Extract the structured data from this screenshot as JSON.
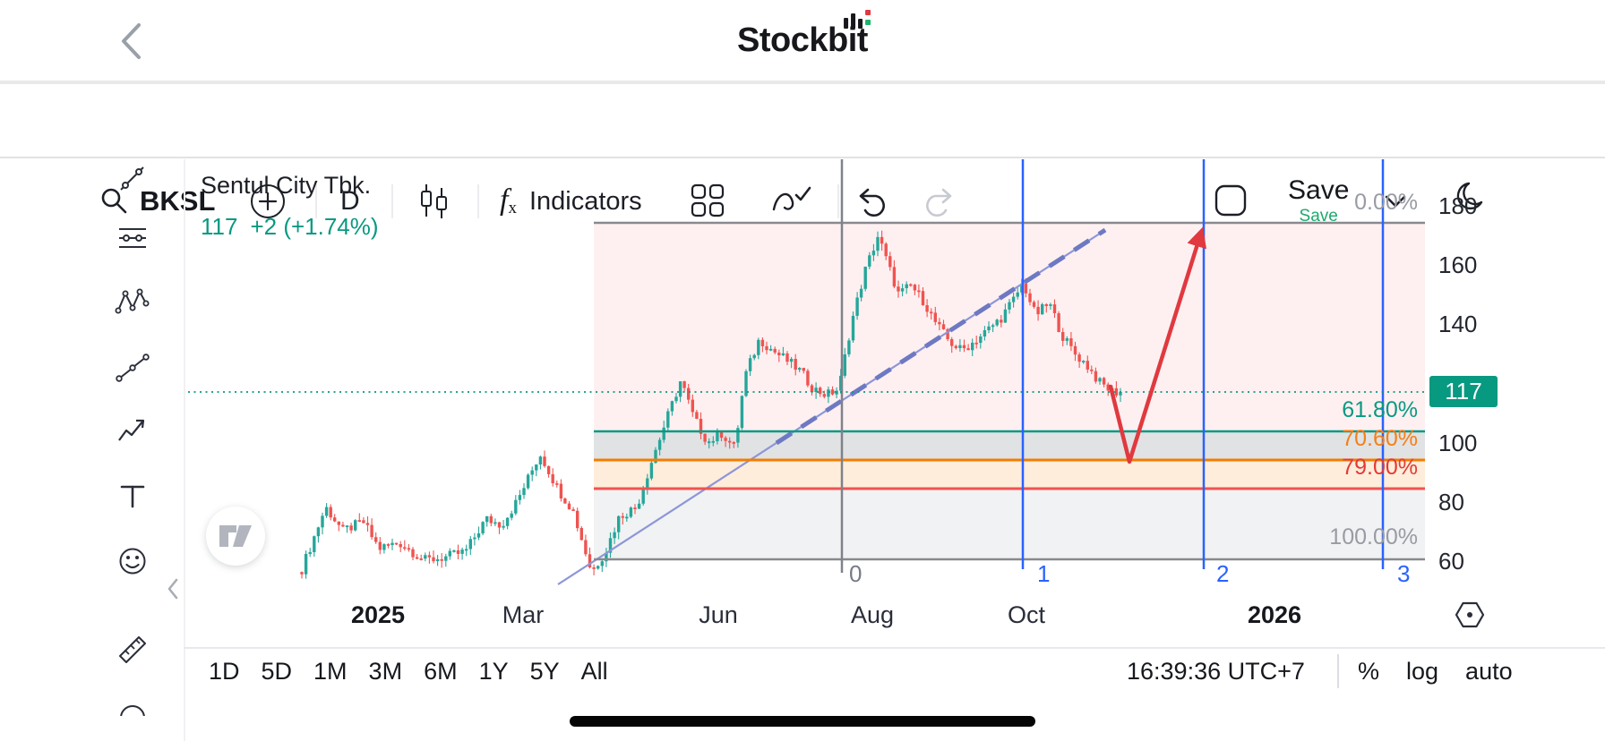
{
  "header": {
    "brand": "Stockbit"
  },
  "toolbar": {
    "symbol": "BKSL",
    "interval": "D",
    "fx_f": "f",
    "fx_x": "x",
    "indicators_label": "Indicators",
    "save_label": "Save",
    "save_status": "Save"
  },
  "sidebar_tools": [
    "trend-line",
    "fib-retracement",
    "xabcd-pattern",
    "trend-based-fib",
    "arrow-projection",
    "text",
    "emoji",
    "measure-ruler",
    "zoom"
  ],
  "chart_data": {
    "type": "candlestick",
    "symbol": "BKSL",
    "name": "Sentul City Tbk.",
    "last_price": 117,
    "change": "+2 (+1.74%)",
    "interval": "D",
    "y_axis_ticks": [
      180,
      160,
      140,
      100,
      80,
      60
    ],
    "x_axis_ticks": [
      "2025",
      "Mar",
      "Jun",
      "Aug",
      "Oct",
      "2026"
    ],
    "time_markers": [
      "0",
      "1",
      "2",
      "3"
    ],
    "fib_levels": [
      {
        "label": "0.00%",
        "price": 174,
        "color": "#787b86"
      },
      {
        "label": "61.80%",
        "price": 104,
        "color": "#089981"
      },
      {
        "label": "70.60%",
        "price": 94,
        "color": "#f57f17"
      },
      {
        "label": "79.00%",
        "price": 84,
        "color": "#e53935"
      },
      {
        "label": "100.00%",
        "price": 60,
        "color": "#787b86"
      }
    ],
    "colors": {
      "up": "#26a69a",
      "down": "#ef5350",
      "timeline_blue": "#2962ff",
      "projection_red": "#e0393f",
      "price_line_green": "#089981",
      "badge_bg": "#089981"
    },
    "price_anchors": [
      [
        0,
        57
      ],
      [
        0.029,
        78
      ],
      [
        0.05,
        70
      ],
      [
        0.075,
        73
      ],
      [
        0.094,
        64
      ],
      [
        0.119,
        66
      ],
      [
        0.15,
        60
      ],
      [
        0.175,
        61
      ],
      [
        0.2,
        63
      ],
      [
        0.225,
        74
      ],
      [
        0.244,
        72
      ],
      [
        0.263,
        80
      ],
      [
        0.291,
        96
      ],
      [
        0.313,
        84
      ],
      [
        0.331,
        77
      ],
      [
        0.354,
        56
      ],
      [
        0.371,
        63
      ],
      [
        0.388,
        75
      ],
      [
        0.409,
        78
      ],
      [
        0.429,
        95
      ],
      [
        0.446,
        108
      ],
      [
        0.463,
        121
      ],
      [
        0.479,
        108
      ],
      [
        0.496,
        100
      ],
      [
        0.513,
        103
      ],
      [
        0.529,
        98
      ],
      [
        0.541,
        122
      ],
      [
        0.559,
        135
      ],
      [
        0.575,
        131
      ],
      [
        0.591,
        128
      ],
      [
        0.609,
        124
      ],
      [
        0.625,
        118
      ],
      [
        0.641,
        116
      ],
      [
        0.656,
        118
      ],
      [
        0.671,
        140
      ],
      [
        0.688,
        158
      ],
      [
        0.704,
        170
      ],
      [
        0.716,
        160
      ],
      [
        0.729,
        150
      ],
      [
        0.744,
        153
      ],
      [
        0.759,
        148
      ],
      [
        0.775,
        140
      ],
      [
        0.791,
        134
      ],
      [
        0.806,
        131
      ],
      [
        0.821,
        134
      ],
      [
        0.838,
        138
      ],
      [
        0.854,
        142
      ],
      [
        0.869,
        148
      ],
      [
        0.881,
        154
      ],
      [
        0.896,
        143
      ],
      [
        0.913,
        147
      ],
      [
        0.929,
        136
      ],
      [
        0.944,
        130
      ],
      [
        0.959,
        126
      ],
      [
        0.975,
        120
      ],
      [
        0.991,
        117
      ],
      [
        1,
        117
      ]
    ]
  },
  "bottom_bar": {
    "ranges": [
      "1D",
      "5D",
      "1M",
      "3M",
      "6M",
      "1Y",
      "5Y",
      "All"
    ],
    "clock": "16:39:36 UTC+7",
    "scale_options": [
      "%",
      "log",
      "auto"
    ]
  }
}
